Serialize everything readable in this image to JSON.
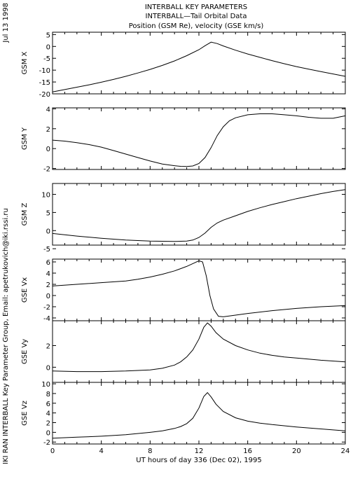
{
  "header": {
    "line1": "INTERBALL KEY PARAMETERS",
    "line2": "INTERBALL—Tail Orbital Data",
    "line3": "Position (GSM Re), velocity (GSE km/s)"
  },
  "side": {
    "date": "Jul 13 1998",
    "credit": "IKI RAN INTERBALL Key Parameter Group, Email: apetrukovich@iki.rssi.ru"
  },
  "chart_data": {
    "type": "line",
    "xlabel": "UT hours of day 336 (Dec 02), 1995",
    "xlim": [
      0,
      24
    ],
    "xticks": [
      0,
      4,
      8,
      12,
      16,
      20,
      24
    ],
    "panels": [
      {
        "ylabel": "GSM X",
        "ylim": [
          -20,
          6
        ],
        "yticks": [
          5,
          0,
          -5,
          -10,
          -15,
          -20
        ],
        "series": [
          {
            "x": [
              0,
              1,
              2,
              3,
              4,
              5,
              6,
              7,
              8,
              9,
              10,
              11,
              12,
              12.5,
              13,
              13.5,
              14,
              15,
              16,
              17,
              18,
              19,
              20,
              21,
              22,
              23,
              24
            ],
            "values": [
              -19.2,
              -18.2,
              -17.2,
              -16.2,
              -15.1,
              -13.9,
              -12.6,
              -11.2,
              -9.7,
              -8.0,
              -6.1,
              -3.9,
              -1.4,
              0.3,
              1.8,
              1.2,
              0.2,
              -1.6,
              -3.2,
              -4.6,
              -6.0,
              -7.3,
              -8.5,
              -9.6,
              -10.6,
              -11.6,
              -12.6
            ]
          }
        ]
      },
      {
        "ylabel": "GSM Y",
        "ylim": [
          -2.1,
          4.1
        ],
        "yticks": [
          4,
          2,
          0,
          -2
        ],
        "series": [
          {
            "x": [
              0,
              1,
              2,
              3,
              4,
              5,
              6,
              7,
              8,
              9,
              10,
              10.5,
              11,
              11.5,
              12,
              12.5,
              13,
              13.5,
              14,
              14.5,
              15,
              16,
              17,
              18,
              19,
              20,
              21,
              22,
              23,
              24
            ],
            "values": [
              0.85,
              0.75,
              0.6,
              0.4,
              0.15,
              -0.2,
              -0.55,
              -0.9,
              -1.25,
              -1.55,
              -1.72,
              -1.78,
              -1.8,
              -1.75,
              -1.5,
              -0.9,
              0.1,
              1.3,
              2.2,
              2.8,
              3.1,
              3.4,
              3.5,
              3.5,
              3.4,
              3.3,
              3.15,
              3.05,
              3.05,
              3.3
            ]
          }
        ]
      },
      {
        "ylabel": "GSM Z",
        "ylim": [
          -4,
          13
        ],
        "yticks": [
          10,
          5,
          0,
          -5
        ],
        "series": [
          {
            "x": [
              0,
              2,
              4,
              6,
              8,
              10,
              11,
              11.5,
              12,
              12.5,
              13,
              13.5,
              14,
              15,
              16,
              17,
              18,
              19,
              20,
              21,
              22,
              23,
              24
            ],
            "values": [
              -0.8,
              -1.5,
              -2.1,
              -2.6,
              -2.9,
              -3.0,
              -2.9,
              -2.6,
              -1.9,
              -0.7,
              0.9,
              2.1,
              2.9,
              4.1,
              5.3,
              6.3,
              7.2,
              8.0,
              8.8,
              9.5,
              10.2,
              10.8,
              11.3
            ]
          }
        ]
      },
      {
        "ylabel": "GSE Vx",
        "ylim": [
          -4.5,
          6.5
        ],
        "yticks": [
          6,
          4,
          2,
          0,
          -2,
          -4
        ],
        "series": [
          {
            "x": [
              0,
              2,
              4,
              6,
              7,
              8,
              9,
              10,
              11,
              11.5,
              12,
              12.3,
              12.6,
              12.9,
              13.2,
              13.6,
              14,
              15,
              16,
              18,
              20,
              22,
              24
            ],
            "values": [
              1.7,
              2.0,
              2.3,
              2.6,
              2.9,
              3.3,
              3.8,
              4.4,
              5.2,
              5.7,
              6.2,
              6.0,
              3.5,
              0.0,
              -2.4,
              -3.7,
              -3.8,
              -3.5,
              -3.2,
              -2.7,
              -2.3,
              -2.0,
              -1.8
            ]
          }
        ]
      },
      {
        "ylabel": "GSE Vy",
        "ylim": [
          -1.4,
          4.3
        ],
        "yticks": [
          2,
          0
        ],
        "series": [
          {
            "x": [
              0,
              2,
              4,
              6,
              8,
              9,
              10,
              10.5,
              11,
              11.5,
              12,
              12.4,
              12.7,
              13.0,
              13.4,
              14,
              15,
              16,
              17,
              18,
              19,
              20,
              22,
              24
            ],
            "values": [
              -0.35,
              -0.4,
              -0.4,
              -0.35,
              -0.25,
              -0.1,
              0.2,
              0.5,
              0.95,
              1.6,
              2.6,
              3.7,
              4.1,
              3.8,
              3.2,
              2.6,
              2.0,
              1.6,
              1.3,
              1.1,
              0.95,
              0.85,
              0.65,
              0.5
            ]
          }
        ]
      },
      {
        "ylabel": "GSE Vz",
        "ylim": [
          -2.4,
          10.3
        ],
        "yticks": [
          10,
          8,
          6,
          4,
          2,
          0,
          -2
        ],
        "series": [
          {
            "x": [
              0,
              2,
              4,
              6,
              8,
              9,
              10,
              10.5,
              11,
              11.5,
              12,
              12.4,
              12.7,
              13.0,
              13.4,
              14,
              15,
              16,
              17,
              18,
              20,
              22,
              24
            ],
            "values": [
              -1.2,
              -1.0,
              -0.8,
              -0.5,
              0.0,
              0.3,
              0.8,
              1.2,
              1.8,
              2.9,
              5.0,
              7.4,
              8.2,
              7.3,
              5.8,
              4.3,
              3.0,
              2.3,
              1.9,
              1.6,
              1.1,
              0.7,
              0.3
            ]
          }
        ]
      }
    ]
  }
}
